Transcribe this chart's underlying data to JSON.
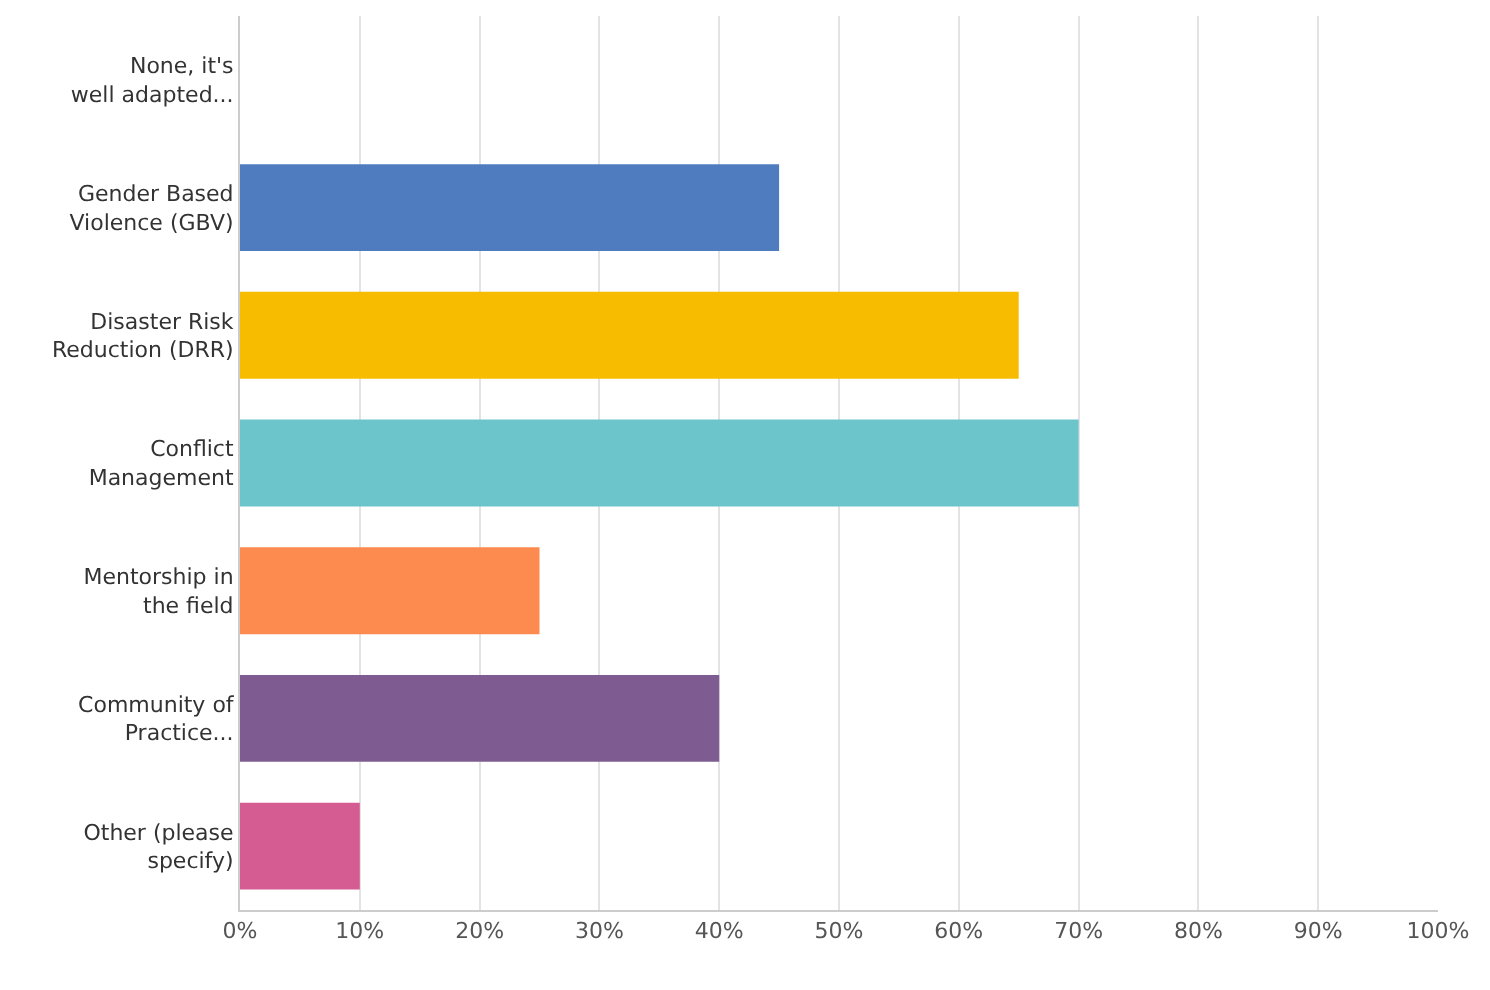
{
  "chart_data": {
    "type": "bar",
    "orientation": "horizontal",
    "categories": [
      "None, it's\nwell adapted...",
      "Gender Based\nViolence (GBV)",
      "Disaster Risk\nReduction (DRR)",
      "Conflict\nManagement",
      "Mentorship in\nthe field",
      "Community of\nPractice...",
      "Other (please\nspecify)"
    ],
    "values": [
      0,
      45,
      65,
      70,
      25,
      40,
      10
    ],
    "colors": [
      "#5b7dc0",
      "#4f7cbf",
      "#f7bc00",
      "#6cc5ca",
      "#fd8b4f",
      "#7e5c91",
      "#d45c92"
    ],
    "xlim": [
      0,
      100
    ],
    "xticks": [
      {
        "value": 0,
        "label": "0%"
      },
      {
        "value": 10,
        "label": "10%"
      },
      {
        "value": 20,
        "label": "20%"
      },
      {
        "value": 30,
        "label": "30%"
      },
      {
        "value": 40,
        "label": "40%"
      },
      {
        "value": 50,
        "label": "50%"
      },
      {
        "value": 60,
        "label": "60%"
      },
      {
        "value": 70,
        "label": "70%"
      },
      {
        "value": 80,
        "label": "80%"
      },
      {
        "value": 90,
        "label": "90%"
      },
      {
        "value": 100,
        "label": "100%"
      }
    ],
    "grid": "x",
    "legend": false
  }
}
